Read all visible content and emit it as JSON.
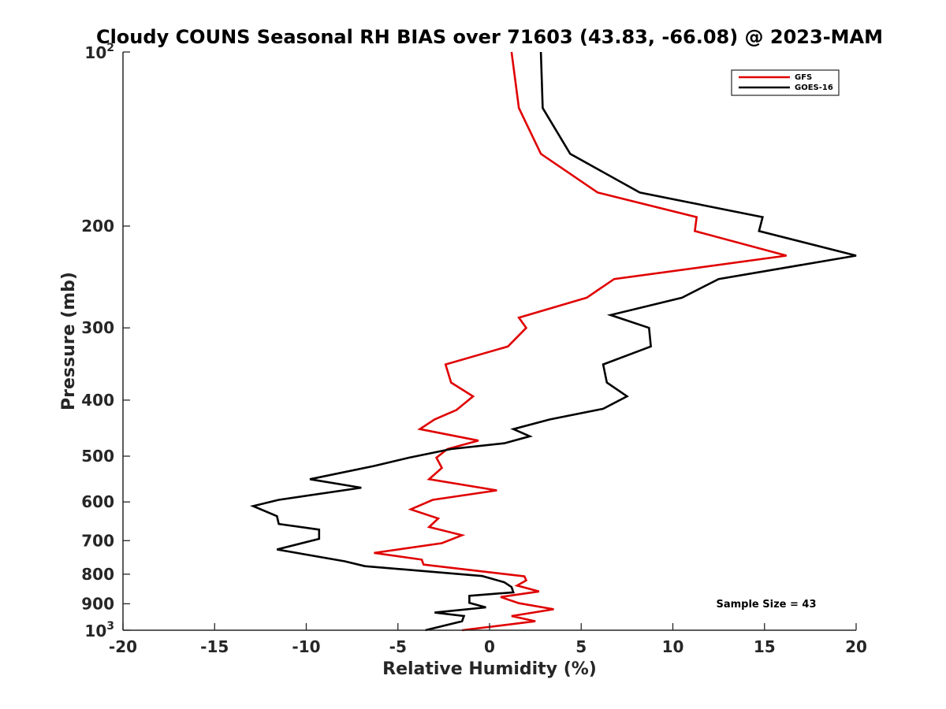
{
  "chart_data": {
    "type": "line",
    "title": "Cloudy COUNS Seasonal RH BIAS over 71603 (43.83, -66.08) @ 2023-MAM",
    "xlabel": "Relative Humidity (%)",
    "ylabel": "Pressure (mb)",
    "xlim": [
      -20,
      20
    ],
    "ylim": [
      100,
      1000
    ],
    "y_scale": "log",
    "y_reversed": true,
    "grid": false,
    "legend_position": "top-right",
    "x_ticks": [
      -20,
      -15,
      -10,
      -5,
      0,
      5,
      10,
      15,
      20
    ],
    "x_tick_labels": [
      "-20",
      "-15",
      "-10",
      "-5",
      "0",
      "5",
      "10",
      "15",
      "20"
    ],
    "y_ticks": [
      200,
      300,
      400,
      500,
      600,
      700,
      800,
      900
    ],
    "y_tick_labels": [
      "200",
      "300",
      "400",
      "500",
      "600",
      "700",
      "800",
      "900"
    ],
    "y_pow_ticks": [
      {
        "value": 100,
        "base": "10",
        "exp": "2"
      },
      {
        "value": 1000,
        "base": "10",
        "exp": "3"
      }
    ],
    "annotation": "Sample Size = 43",
    "series": [
      {
        "name": "GFS",
        "color": "#e00000",
        "points": [
          [
            1.2,
            100
          ],
          [
            1.6,
            125
          ],
          [
            2.8,
            150
          ],
          [
            5.9,
            175
          ],
          [
            11.3,
            193
          ],
          [
            11.2,
            204
          ],
          [
            16.2,
            225
          ],
          [
            6.8,
            247
          ],
          [
            5.3,
            266
          ],
          [
            1.6,
            288
          ],
          [
            2.0,
            300
          ],
          [
            1.0,
            323
          ],
          [
            -2.4,
            347
          ],
          [
            -2.1,
            373
          ],
          [
            -0.9,
            394
          ],
          [
            -1.8,
            416
          ],
          [
            -3.0,
            432
          ],
          [
            -3.8,
            449
          ],
          [
            -0.6,
            470
          ],
          [
            -2.3,
            486
          ],
          [
            -2.9,
            503
          ],
          [
            -2.6,
            524
          ],
          [
            -3.3,
            548
          ],
          [
            0.4,
            573
          ],
          [
            -3.1,
            595
          ],
          [
            -4.3,
            618
          ],
          [
            -2.8,
            641
          ],
          [
            -3.3,
            663
          ],
          [
            -1.5,
            685
          ],
          [
            -2.6,
            707
          ],
          [
            -6.3,
            735
          ],
          [
            -3.7,
            755
          ],
          [
            -3.6,
            770
          ],
          [
            1.9,
            807
          ],
          [
            2.0,
            820
          ],
          [
            1.5,
            837
          ],
          [
            2.7,
            857
          ],
          [
            0.6,
            876
          ],
          [
            1.6,
            898
          ],
          [
            3.5,
            920
          ],
          [
            1.2,
            945
          ],
          [
            2.5,
            965
          ],
          [
            -1.5,
            1000
          ]
        ]
      },
      {
        "name": "GOES-16",
        "color": "#000000",
        "points": [
          [
            2.8,
            100
          ],
          [
            2.9,
            125
          ],
          [
            4.4,
            150
          ],
          [
            8.2,
            175
          ],
          [
            14.9,
            193
          ],
          [
            14.7,
            204
          ],
          [
            20.0,
            225
          ],
          [
            12.5,
            247
          ],
          [
            10.5,
            266
          ],
          [
            6.6,
            285
          ],
          [
            8.7,
            300
          ],
          [
            8.8,
            323
          ],
          [
            6.2,
            347
          ],
          [
            6.4,
            373
          ],
          [
            7.5,
            394
          ],
          [
            6.2,
            414
          ],
          [
            3.3,
            432
          ],
          [
            1.3,
            449
          ],
          [
            2.2,
            462
          ],
          [
            0.8,
            475
          ],
          [
            -2.1,
            486
          ],
          [
            -4.4,
            503
          ],
          [
            -6.3,
            520
          ],
          [
            -9.8,
            548
          ],
          [
            -7.0,
            567
          ],
          [
            -11.5,
            595
          ],
          [
            -12.9,
            610
          ],
          [
            -11.6,
            635
          ],
          [
            -11.5,
            655
          ],
          [
            -9.3,
            670
          ],
          [
            -9.3,
            695
          ],
          [
            -11.6,
            725
          ],
          [
            -7.9,
            760
          ],
          [
            -6.8,
            775
          ],
          [
            -0.4,
            806
          ],
          [
            0.8,
            826
          ],
          [
            1.2,
            842
          ],
          [
            1.3,
            860
          ],
          [
            -1.1,
            872
          ],
          [
            -1.1,
            897
          ],
          [
            -0.2,
            913
          ],
          [
            -3.0,
            932
          ],
          [
            -1.4,
            945
          ],
          [
            -1.5,
            965
          ],
          [
            -3.5,
            1000
          ]
        ]
      }
    ]
  }
}
